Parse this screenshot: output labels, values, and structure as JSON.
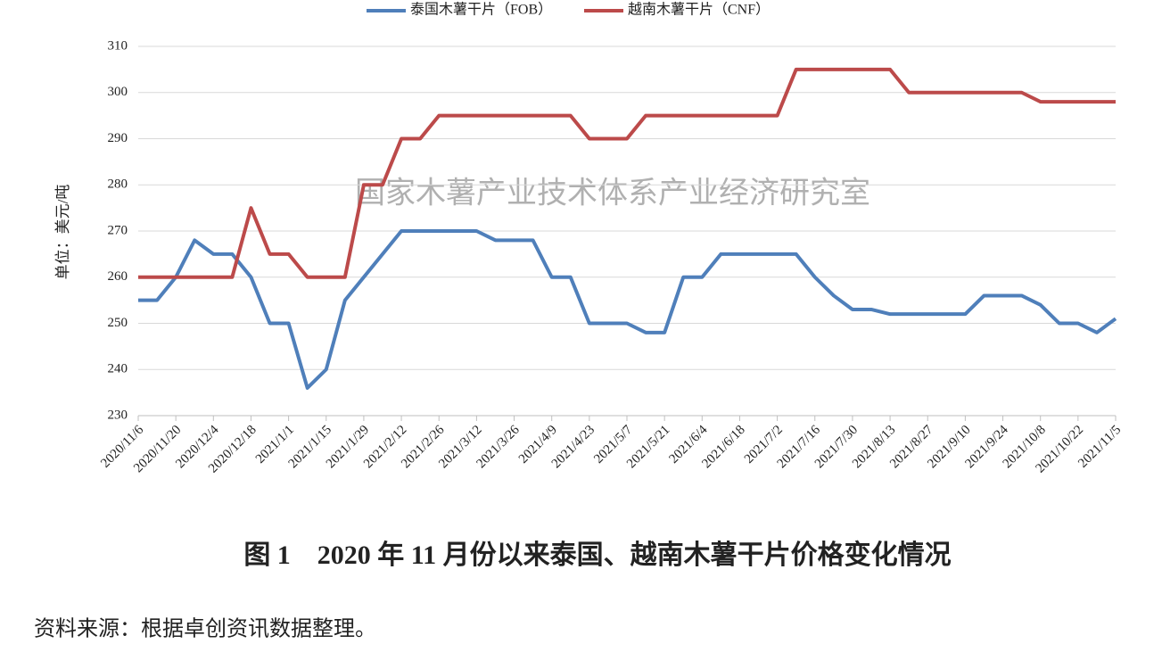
{
  "chart_data": {
    "type": "line",
    "watermark": "国家木薯产业技术体系产业经济研究室",
    "y_label": "单位：美元/吨",
    "caption": "图 1　2020 年 11 月份以来泰国、越南木薯干片价格变化情况",
    "source": "资料来源：根据卓创资讯数据整理。",
    "categories": [
      "2020/11/6",
      null,
      "2020/11/20",
      null,
      "2020/12/4",
      null,
      "2020/12/18",
      null,
      "2021/1/1",
      null,
      "2021/1/15",
      null,
      "2021/1/29",
      null,
      "2021/2/12",
      null,
      "2021/2/26",
      null,
      "2021/3/12",
      null,
      "2021/3/26",
      null,
      "2021/4/9",
      null,
      "2021/4/23",
      null,
      "2021/5/7",
      null,
      "2021/5/21",
      null,
      "2021/6/4",
      null,
      "2021/6/18",
      null,
      "2021/7/2",
      null,
      "2021/7/16",
      null,
      "2021/7/30",
      null,
      "2021/8/13",
      null,
      "2021/8/27",
      null,
      "2021/9/10",
      null,
      "2021/9/24",
      null,
      "2021/10/8",
      null,
      "2021/10/22",
      null,
      "2021/11/5"
    ],
    "series": [
      {
        "name": "泰国木薯干片（FOB）",
        "color": "#4f7fba",
        "values": [
          255,
          255,
          260,
          268,
          265,
          265,
          260,
          250,
          250,
          236,
          240,
          255,
          260,
          265,
          270,
          270,
          270,
          270,
          270,
          268,
          268,
          268,
          260,
          260,
          250,
          250,
          250,
          248,
          248,
          260,
          260,
          265,
          265,
          265,
          265,
          265,
          260,
          256,
          253,
          253,
          252,
          252,
          252,
          252,
          252,
          256,
          256,
          256,
          254,
          250,
          250,
          248,
          251
        ]
      },
      {
        "name": "越南木薯干片（CNF）",
        "color": "#bc4a4a",
        "values": [
          260,
          260,
          260,
          260,
          260,
          260,
          275,
          265,
          265,
          260,
          260,
          260,
          280,
          280,
          290,
          290,
          295,
          295,
          295,
          295,
          295,
          295,
          295,
          295,
          290,
          290,
          290,
          295,
          295,
          295,
          295,
          295,
          295,
          295,
          295,
          305,
          305,
          305,
          305,
          305,
          305,
          300,
          300,
          300,
          300,
          300,
          300,
          300,
          298,
          298,
          298,
          298,
          298
        ]
      }
    ],
    "ylim": [
      230,
      310
    ],
    "yticks": [
      230,
      240,
      250,
      260,
      270,
      280,
      290,
      300,
      310
    ],
    "grid": true
  }
}
